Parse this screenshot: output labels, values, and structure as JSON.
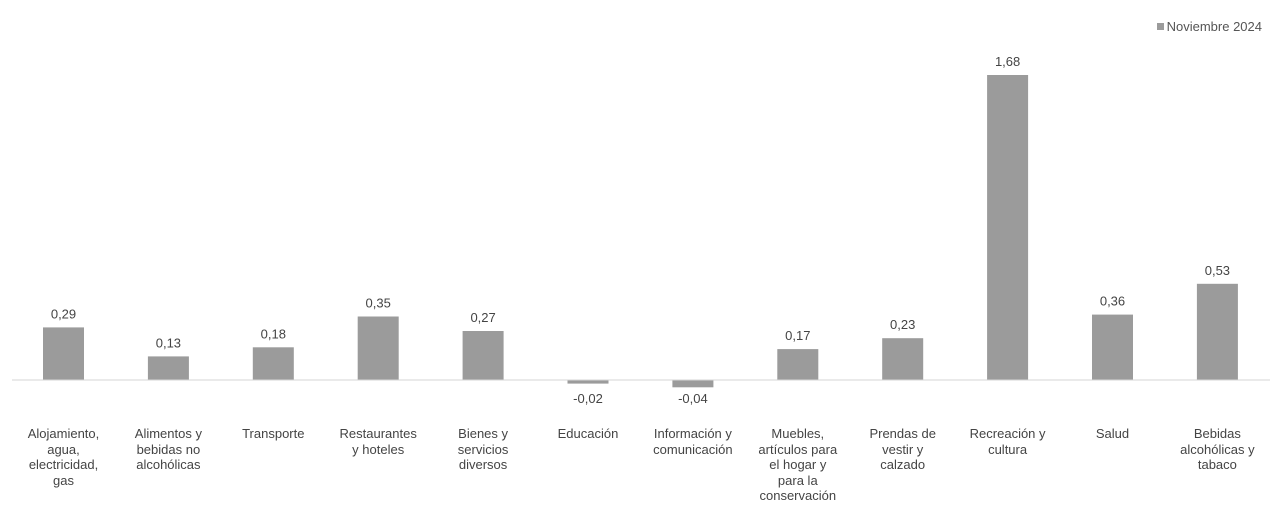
{
  "chart_data": {
    "type": "bar",
    "legend": {
      "label": "Noviembre 2024",
      "position": "top-right"
    },
    "series": [
      {
        "name": "Noviembre 2024",
        "color": "#9b9b9b",
        "values": [
          0.29,
          0.13,
          0.18,
          0.35,
          0.27,
          -0.02,
          -0.04,
          0.17,
          0.23,
          1.68,
          0.36,
          0.53
        ]
      }
    ],
    "data_labels": [
      "0,29",
      "0,13",
      "0,18",
      "0,35",
      "0,27",
      "-0,02",
      "-0,04",
      "0,17",
      "0,23",
      "1,68",
      "0,36",
      "0,53"
    ],
    "categories": [
      [
        "Alojamiento,",
        "agua,",
        "electricidad,",
        "gas"
      ],
      [
        "Alimentos y",
        "bebidas no",
        "alcohólicas"
      ],
      [
        "Transporte"
      ],
      [
        "Restaurantes",
        "y hoteles"
      ],
      [
        "Bienes y",
        "servicios",
        "diversos"
      ],
      [
        "Educación"
      ],
      [
        "Información y",
        "comunicación"
      ],
      [
        "Muebles,",
        "artículos para",
        "el hogar y",
        "para la",
        "conservación"
      ],
      [
        "Prendas de",
        "vestir y",
        "calzado"
      ],
      [
        "Recreación y",
        "cultura"
      ],
      [
        "Salud"
      ],
      [
        "Bebidas",
        "alcohólicas y",
        "tabaco"
      ]
    ],
    "ylim": [
      -0.04,
      1.68
    ],
    "grid": false,
    "axis_color": "#d4d4d4"
  }
}
